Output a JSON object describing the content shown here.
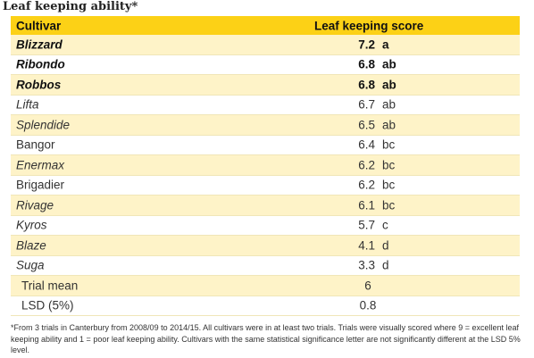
{
  "title": "Leaf keeping ability*",
  "table": {
    "header": [
      "Cultivar",
      "Leaf keeping score"
    ],
    "rows": [
      {
        "cultivar": "Blizzard",
        "score": 7.2,
        "group": "a"
      },
      {
        "cultivar": "Ribondo",
        "score": 6.8,
        "group": "ab"
      },
      {
        "cultivar": "Robbos",
        "score": 6.8,
        "group": "ab"
      },
      {
        "cultivar": "Lifta",
        "score": 6.7,
        "group": "ab"
      },
      {
        "cultivar": "Splendide",
        "score": 6.5,
        "group": "ab"
      },
      {
        "cultivar": "Bangor",
        "score": 6.4,
        "group": "bc"
      },
      {
        "cultivar": "Enermax",
        "score": 6.2,
        "group": "bc"
      },
      {
        "cultivar": "Brigadier",
        "score": 6.2,
        "group": "bc"
      },
      {
        "cultivar": "Rivage",
        "score": 6.1,
        "group": "bc"
      },
      {
        "cultivar": "Kyros",
        "score": 5.7,
        "group": "c"
      },
      {
        "cultivar": "Blaze",
        "score": 4.1,
        "group": "d"
      },
      {
        "cultivar": "Suga",
        "score": 3.3,
        "group": "d"
      }
    ],
    "summary": [
      {
        "label": "Trial mean",
        "value": 6
      },
      {
        "label": "LSD (5%)",
        "value": 0.8
      }
    ]
  },
  "footnote": "*From 3 trials in Canterbury from 2008/09 to 2014/15. All cultivars were in at least two trials. Trials were visually scored where 9 = excellent leaf keeping ability and 1 = poor leaf keeping ability. Cultivars with the same statistical significance letter are not significantly different at the LSD 5% level."
}
